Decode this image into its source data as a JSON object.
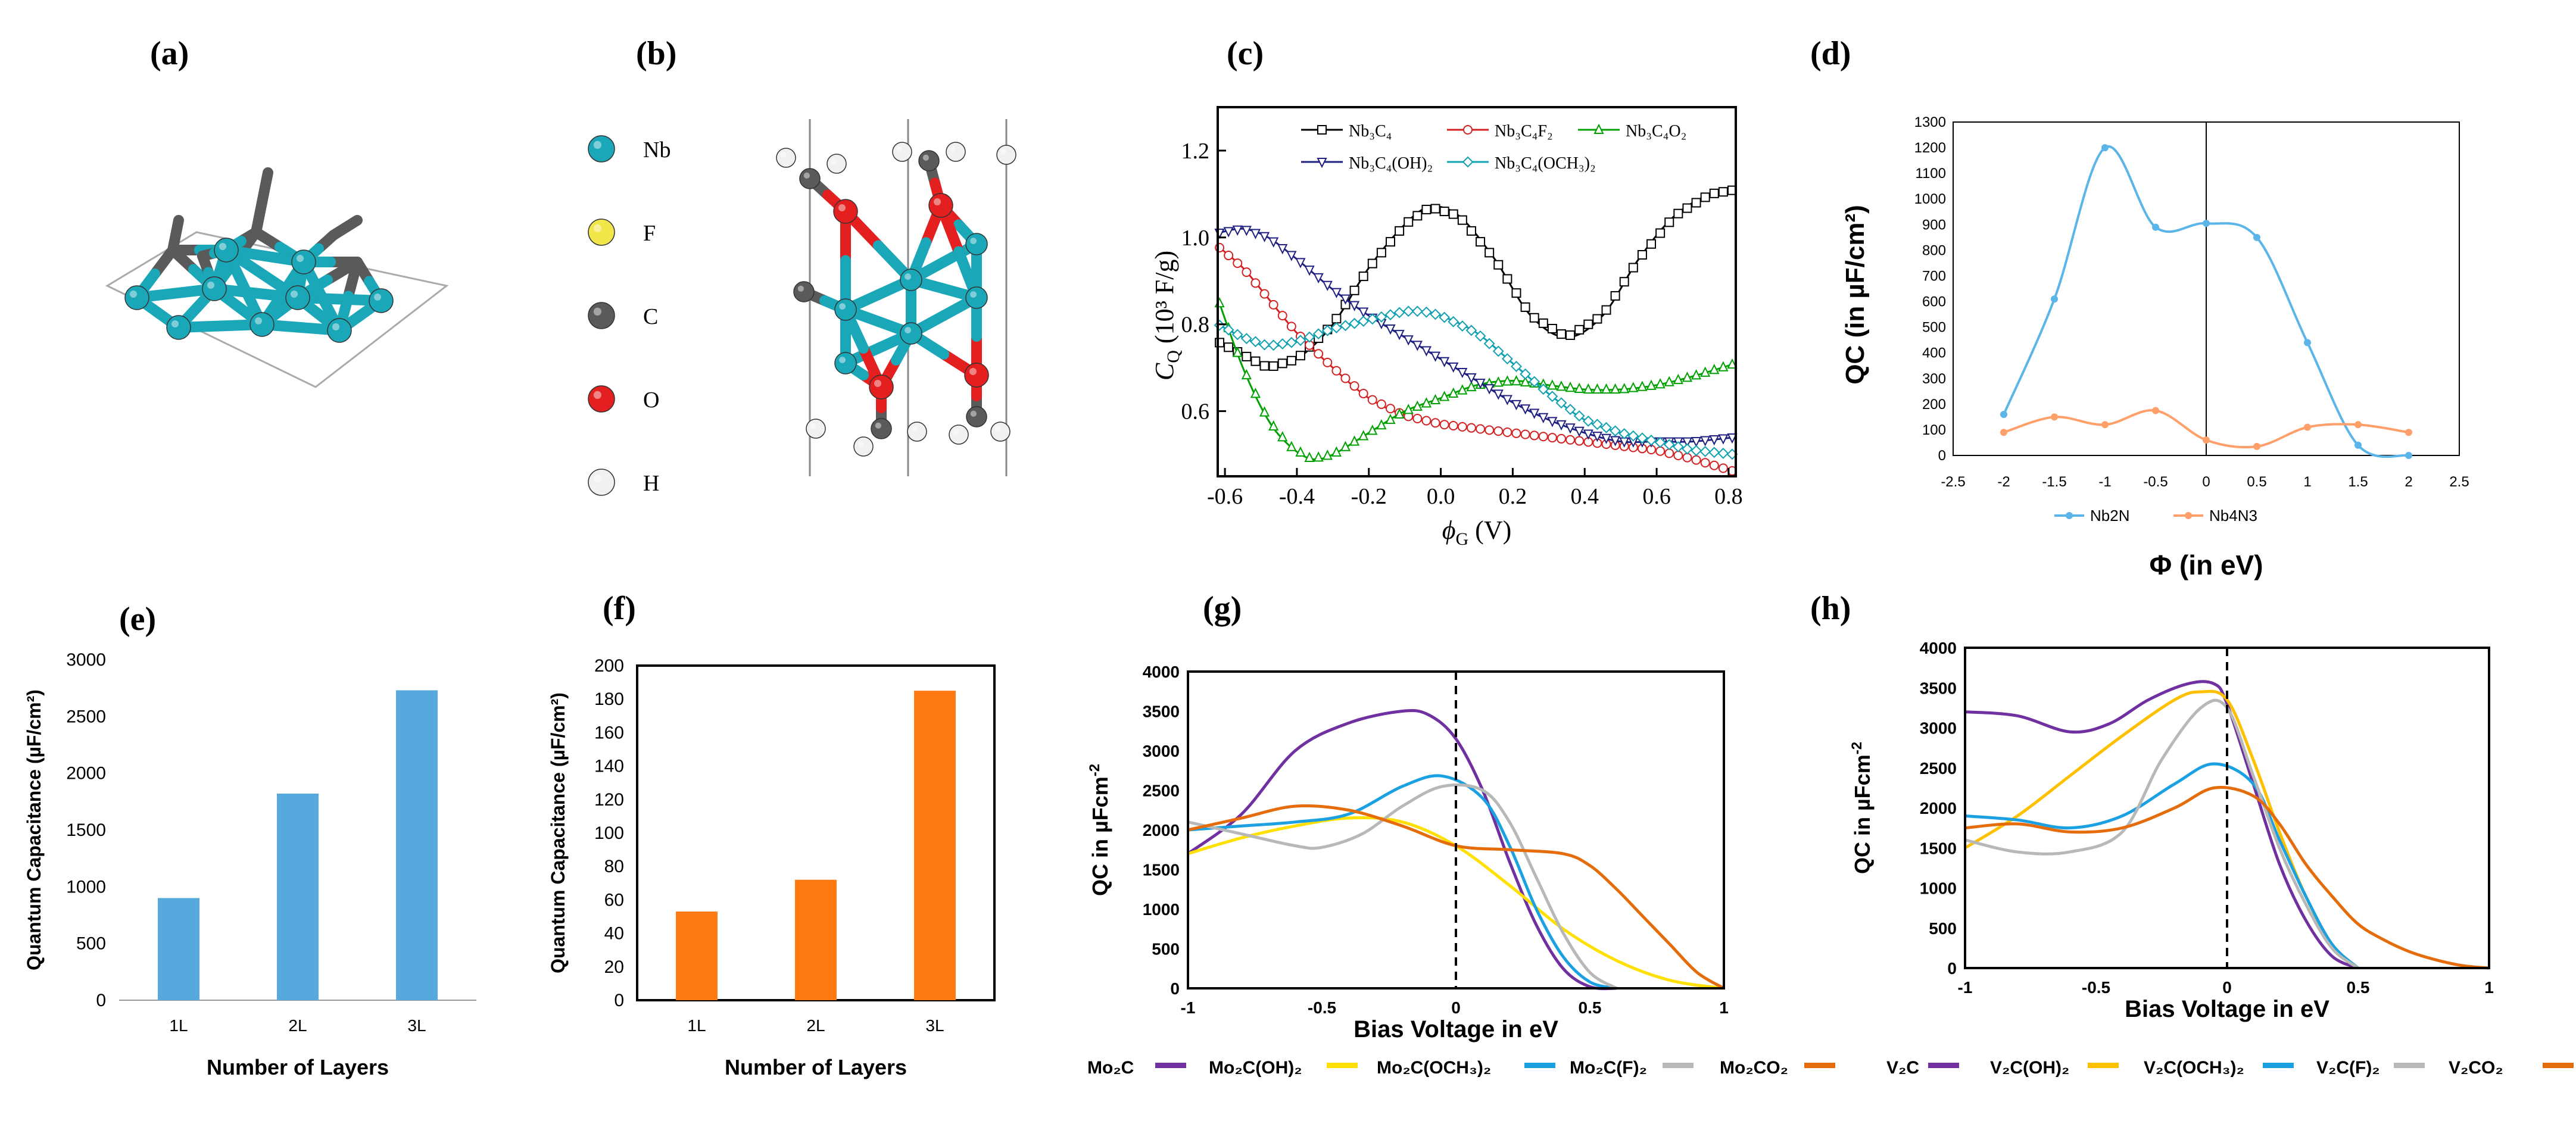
{
  "panel_labels": [
    "(a)",
    "(b)",
    "(c)",
    "(d)",
    "(e)",
    "(f)",
    "(g)",
    "(h)"
  ],
  "colors": {
    "nb": "#1aa7b8",
    "f": "#f2e64a",
    "c": "#5a5a5a",
    "o": "#e41f1f",
    "h": "#f1f1f1",
    "blue_bar": "#56a9dc",
    "orange_bar": "#ff7a12",
    "nb2n": "#5bb5e8",
    "nb4n3": "#ff9f6a",
    "purple": "#7030a0",
    "yellow": "#ffe000",
    "sky": "#1ba1e2",
    "gray": "#b8b8b8",
    "orange": "#e46c0a"
  },
  "legend_b": [
    "Nb",
    "F",
    "C",
    "O",
    "H"
  ],
  "chart_data": [
    {
      "id": "c",
      "type": "line",
      "xlabel_sym": "ϕ",
      "xlabel_sub": "G",
      "xlabel_unit": " (V)",
      "ylabel_sym": "C",
      "ylabel_sub": "Q",
      "ylabel_unit": " (10³ F/g)",
      "xlim": [
        -0.62,
        0.82
      ],
      "ylim": [
        0.45,
        1.3
      ],
      "xticks": [
        "-0.6",
        "-0.4",
        "-0.2",
        "0.0",
        "0.2",
        "0.4",
        "0.6",
        "0.8"
      ],
      "yticks": [
        "0.6",
        "0.8",
        "1.0",
        "1.2"
      ],
      "series": [
        {
          "name": "Nb₃C₄",
          "color": "#000000",
          "marker": "square",
          "x": [
            -0.62,
            -0.55,
            -0.48,
            -0.4,
            -0.3,
            -0.2,
            -0.1,
            -0.03,
            0.05,
            0.15,
            0.25,
            0.35,
            0.45,
            0.55,
            0.65,
            0.75,
            0.82
          ],
          "y": [
            0.76,
            0.73,
            0.7,
            0.72,
            0.8,
            0.93,
            1.03,
            1.07,
            1.05,
            0.95,
            0.82,
            0.77,
            0.82,
            0.95,
            1.05,
            1.1,
            1.11
          ]
        },
        {
          "name": "Nb₃C₄F₂",
          "color": "#d42020",
          "marker": "circle",
          "x": [
            -0.62,
            -0.55,
            -0.48,
            -0.4,
            -0.3,
            -0.2,
            -0.1,
            0.0,
            0.1,
            0.2,
            0.3,
            0.4,
            0.5,
            0.6,
            0.7,
            0.82
          ],
          "y": [
            0.98,
            0.93,
            0.86,
            0.78,
            0.7,
            0.63,
            0.59,
            0.57,
            0.56,
            0.55,
            0.54,
            0.53,
            0.52,
            0.51,
            0.49,
            0.46
          ]
        },
        {
          "name": "Nb₃C₄O₂",
          "color": "#00a000",
          "marker": "triangle",
          "x": [
            -0.62,
            -0.55,
            -0.48,
            -0.42,
            -0.36,
            -0.3,
            -0.2,
            -0.1,
            0.0,
            0.1,
            0.2,
            0.3,
            0.4,
            0.5,
            0.6,
            0.7,
            0.82
          ],
          "y": [
            0.86,
            0.7,
            0.58,
            0.52,
            0.49,
            0.5,
            0.55,
            0.6,
            0.63,
            0.66,
            0.67,
            0.66,
            0.65,
            0.65,
            0.66,
            0.68,
            0.71
          ]
        },
        {
          "name": "Nb₃C₄(OH)₂",
          "color": "#202080",
          "marker": "triangle-down",
          "x": [
            -0.62,
            -0.55,
            -0.48,
            -0.4,
            -0.3,
            -0.2,
            -0.1,
            0.0,
            0.1,
            0.2,
            0.3,
            0.4,
            0.5,
            0.6,
            0.7,
            0.82
          ],
          "y": [
            1.01,
            1.02,
            1.0,
            0.95,
            0.88,
            0.82,
            0.77,
            0.72,
            0.67,
            0.62,
            0.58,
            0.55,
            0.53,
            0.53,
            0.53,
            0.54
          ]
        },
        {
          "name": "Nb₃C₄(OCH₃)₂",
          "color": "#10a0b0",
          "marker": "diamond",
          "x": [
            -0.62,
            -0.55,
            -0.48,
            -0.4,
            -0.3,
            -0.2,
            -0.1,
            -0.05,
            0.0,
            0.1,
            0.2,
            0.3,
            0.4,
            0.5,
            0.6,
            0.7,
            0.82
          ],
          "y": [
            0.8,
            0.77,
            0.75,
            0.76,
            0.79,
            0.81,
            0.83,
            0.83,
            0.82,
            0.78,
            0.71,
            0.64,
            0.58,
            0.55,
            0.53,
            0.51,
            0.5
          ]
        }
      ]
    },
    {
      "id": "d",
      "type": "line",
      "ylabel": "QC (in µF/cm²)",
      "xlabel": "Φ (in eV)",
      "xlim": [
        -2.5,
        2.5
      ],
      "ylim": [
        0,
        1300
      ],
      "xticks": [
        "-2.5",
        "-2",
        "-1.5",
        "-1",
        "-0.5",
        "0",
        "0.5",
        "1",
        "1.5",
        "2",
        "2.5"
      ],
      "yticks": [
        "0",
        "100",
        "200",
        "300",
        "400",
        "500",
        "600",
        "700",
        "800",
        "900",
        "1000",
        "1100",
        "1200",
        "1300"
      ],
      "series": [
        {
          "name": "Nb2N",
          "color": "#5bb5e8",
          "x": [
            -2,
            -1.5,
            -1,
            -0.5,
            0,
            0.5,
            1,
            1.5,
            2
          ],
          "y": [
            160,
            610,
            1200,
            890,
            905,
            850,
            440,
            40,
            0
          ]
        },
        {
          "name": "Nb4N3",
          "color": "#ff9f6a",
          "x": [
            -2,
            -1.5,
            -1,
            -0.5,
            0,
            0.5,
            1,
            1.5,
            2
          ],
          "y": [
            90,
            150,
            120,
            175,
            60,
            35,
            110,
            120,
            90
          ]
        }
      ]
    },
    {
      "id": "e",
      "type": "bar",
      "ylabel": "Quantum Capacitance (µF/cm²)",
      "xlabel": "Number of Layers",
      "categories": [
        "1L",
        "2L",
        "3L"
      ],
      "values": [
        900,
        1820,
        2730
      ],
      "ylim": [
        0,
        3000
      ],
      "yticks": [
        "0",
        "500",
        "1000",
        "1500",
        "2000",
        "2500",
        "3000"
      ]
    },
    {
      "id": "f",
      "type": "bar",
      "ylabel": "Quantum Capacitance (µF/cm²)",
      "xlabel": "Number of Layers",
      "categories": [
        "1L",
        "2L",
        "3L"
      ],
      "values": [
        53,
        72,
        185
      ],
      "ylim": [
        0,
        200
      ],
      "yticks": [
        "0",
        "20",
        "40",
        "60",
        "80",
        "100",
        "120",
        "140",
        "160",
        "180",
        "200"
      ]
    },
    {
      "id": "g",
      "type": "line",
      "ylabel": "QC in µFcm",
      "ylabel_sup": "-2",
      "xlabel": "Bias Voltage in eV",
      "xlim": [
        -1,
        1
      ],
      "ylim": [
        0,
        4000
      ],
      "xticks": [
        "-1",
        "-0.5",
        "0",
        "0.5",
        "1"
      ],
      "yticks": [
        "0",
        "500",
        "1000",
        "1500",
        "2000",
        "2500",
        "3000",
        "3500",
        "4000"
      ],
      "series": [
        {
          "name": "Mo₂C",
          "color": "#7030a0",
          "x": [
            -1,
            -0.8,
            -0.6,
            -0.4,
            -0.2,
            -0.1,
            0,
            0.1,
            0.2,
            0.3,
            0.4,
            0.5,
            0.6
          ],
          "y": [
            1700,
            2200,
            3000,
            3350,
            3500,
            3450,
            3150,
            2500,
            1600,
            800,
            250,
            20,
            0
          ]
        },
        {
          "name": "Mo₂C(OH)₂",
          "color": "#ffe000",
          "x": [
            -1,
            -0.8,
            -0.6,
            -0.4,
            -0.2,
            0,
            0.2,
            0.4,
            0.6,
            0.8,
            1
          ],
          "y": [
            1700,
            1900,
            2050,
            2150,
            2100,
            1800,
            1300,
            750,
            350,
            100,
            0
          ]
        },
        {
          "name": "Mo₂C(OCH₃)₂",
          "color": "#1ba1e2",
          "x": [
            -1,
            -0.8,
            -0.6,
            -0.4,
            -0.2,
            -0.05,
            0.1,
            0.2,
            0.3,
            0.4,
            0.5,
            0.6
          ],
          "y": [
            2000,
            2050,
            2100,
            2200,
            2550,
            2680,
            2400,
            1800,
            1000,
            400,
            80,
            0
          ]
        },
        {
          "name": "Mo₂C(F)₂",
          "color": "#b8b8b8",
          "x": [
            -1,
            -0.8,
            -0.6,
            -0.5,
            -0.35,
            -0.2,
            -0.05,
            0.1,
            0.2,
            0.3,
            0.4,
            0.5,
            0.6
          ],
          "y": [
            2100,
            1950,
            1800,
            1780,
            1950,
            2300,
            2550,
            2500,
            2100,
            1400,
            700,
            200,
            0
          ]
        },
        {
          "name": "Mo₂CO₂",
          "color": "#e46c0a",
          "x": [
            -1,
            -0.8,
            -0.6,
            -0.4,
            -0.2,
            0,
            0.2,
            0.4,
            0.5,
            0.6,
            0.7,
            0.8,
            0.9,
            1
          ],
          "y": [
            2000,
            2150,
            2300,
            2250,
            2050,
            1800,
            1750,
            1700,
            1550,
            1250,
            900,
            550,
            200,
            0
          ]
        }
      ]
    },
    {
      "id": "h",
      "type": "line",
      "ylabel": "QC in µFcm",
      "ylabel_sup": "-2",
      "xlabel": "Bias Voltage in eV",
      "xlim": [
        -1,
        1
      ],
      "ylim": [
        0,
        4000
      ],
      "xticks": [
        "-1",
        "-0.5",
        "0",
        "0.5",
        "1"
      ],
      "yticks": [
        "0",
        "500",
        "1000",
        "1500",
        "2000",
        "2500",
        "3000",
        "3500",
        "4000"
      ],
      "series": [
        {
          "name": "V₂C",
          "color": "#7030a0",
          "x": [
            -1,
            -0.8,
            -0.6,
            -0.45,
            -0.3,
            -0.15,
            -0.05,
            0,
            0.1,
            0.2,
            0.3,
            0.4,
            0.5
          ],
          "y": [
            3200,
            3150,
            2950,
            3050,
            3350,
            3550,
            3550,
            3300,
            2300,
            1300,
            600,
            150,
            0
          ]
        },
        {
          "name": "V₂C(OH)₂",
          "color": "#ffc000",
          "x": [
            -1,
            -0.8,
            -0.6,
            -0.4,
            -0.2,
            -0.1,
            0,
            0.1,
            0.2,
            0.3,
            0.4,
            0.5
          ],
          "y": [
            1500,
            1900,
            2400,
            2900,
            3350,
            3450,
            3350,
            2600,
            1700,
            900,
            300,
            0
          ]
        },
        {
          "name": "V₂C(OCH₃)₂",
          "color": "#1ba1e2",
          "x": [
            -1,
            -0.8,
            -0.6,
            -0.4,
            -0.2,
            -0.05,
            0.1,
            0.2,
            0.3,
            0.4,
            0.5
          ],
          "y": [
            1900,
            1850,
            1750,
            1900,
            2300,
            2550,
            2300,
            1600,
            900,
            300,
            0
          ]
        },
        {
          "name": "V₂C(F)₂",
          "color": "#b8b8b8",
          "x": [
            -1,
            -0.8,
            -0.6,
            -0.4,
            -0.25,
            -0.1,
            0,
            0.1,
            0.2,
            0.3,
            0.4,
            0.5
          ],
          "y": [
            1600,
            1450,
            1450,
            1700,
            2600,
            3250,
            3250,
            2400,
            1500,
            800,
            250,
            0
          ]
        },
        {
          "name": "V₂CO₂",
          "color": "#e46c0a",
          "x": [
            -1,
            -0.8,
            -0.6,
            -0.4,
            -0.2,
            -0.05,
            0.1,
            0.2,
            0.3,
            0.4,
            0.5,
            0.6,
            0.7,
            0.8,
            0.9,
            1
          ],
          "y": [
            1750,
            1800,
            1700,
            1750,
            2000,
            2250,
            2150,
            1800,
            1300,
            900,
            550,
            350,
            200,
            100,
            30,
            0
          ]
        }
      ]
    }
  ]
}
